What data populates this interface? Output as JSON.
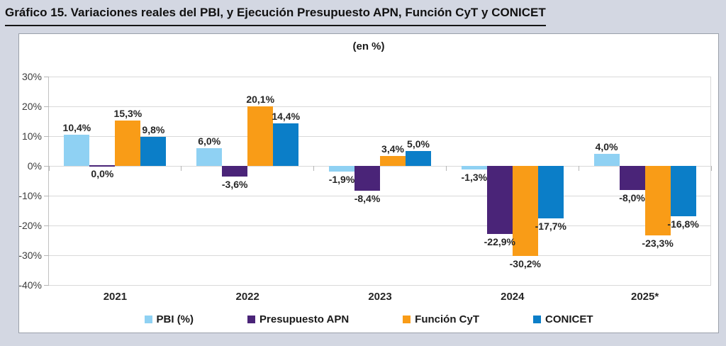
{
  "header": {
    "title": "Gráfico 15. Variaciones reales del PBI, y Ejecución Presupuesto APN, Función CyT y CONICET"
  },
  "chart_data": {
    "type": "bar",
    "title": "Gráfico 15. Variaciones reales del PBI, y Ejecución Presupuesto APN, Función CyT y CONICET",
    "subtitle": "(en %)",
    "categories": [
      "2021",
      "2022",
      "2023",
      "2024",
      "2025*"
    ],
    "series": [
      {
        "name": "PBI (%)",
        "color": "#8fd1f3",
        "values": [
          10.4,
          6.0,
          -1.9,
          -1.3,
          4.0
        ]
      },
      {
        "name": "Presupuesto APN",
        "color": "#4a2478",
        "values": [
          0.0,
          -3.6,
          -8.4,
          -22.9,
          -8.0
        ]
      },
      {
        "name": "Función CyT",
        "color": "#f99c17",
        "values": [
          15.3,
          20.1,
          3.4,
          -30.2,
          -23.3
        ]
      },
      {
        "name": "CONICET",
        "color": "#0b7ec8",
        "values": [
          9.8,
          14.4,
          5.0,
          -17.7,
          -16.8
        ]
      }
    ],
    "data_labels": [
      [
        "10,4%",
        "6,0%",
        "-1,9%",
        "-1,3%",
        "4,0%"
      ],
      [
        "0,0%",
        "-3,6%",
        "-8,4%",
        "-22,9%",
        "-8,0%"
      ],
      [
        "15,3%",
        "20,1%",
        "3,4%",
        "-30,2%",
        "-23,3%"
      ],
      [
        "9,8%",
        "14,4%",
        "5,0%",
        "-17,7%",
        "-16,8%"
      ]
    ],
    "xlabel": "",
    "ylabel": "",
    "ylim": [
      -40,
      30
    ],
    "yticks": [
      30,
      20,
      10,
      0,
      -10,
      -20,
      -30,
      -40
    ],
    "ytick_labels": [
      "30%",
      "20%",
      "10%",
      "0%",
      "-10%",
      "-20%",
      "-30%",
      "-40%"
    ],
    "grid": true,
    "legend_position": "bottom",
    "colors": {
      "page_background": "#d3d7e2",
      "plot_background": "#ffffff",
      "gridline": "#d9d9d9",
      "label_text": "#262626"
    }
  }
}
